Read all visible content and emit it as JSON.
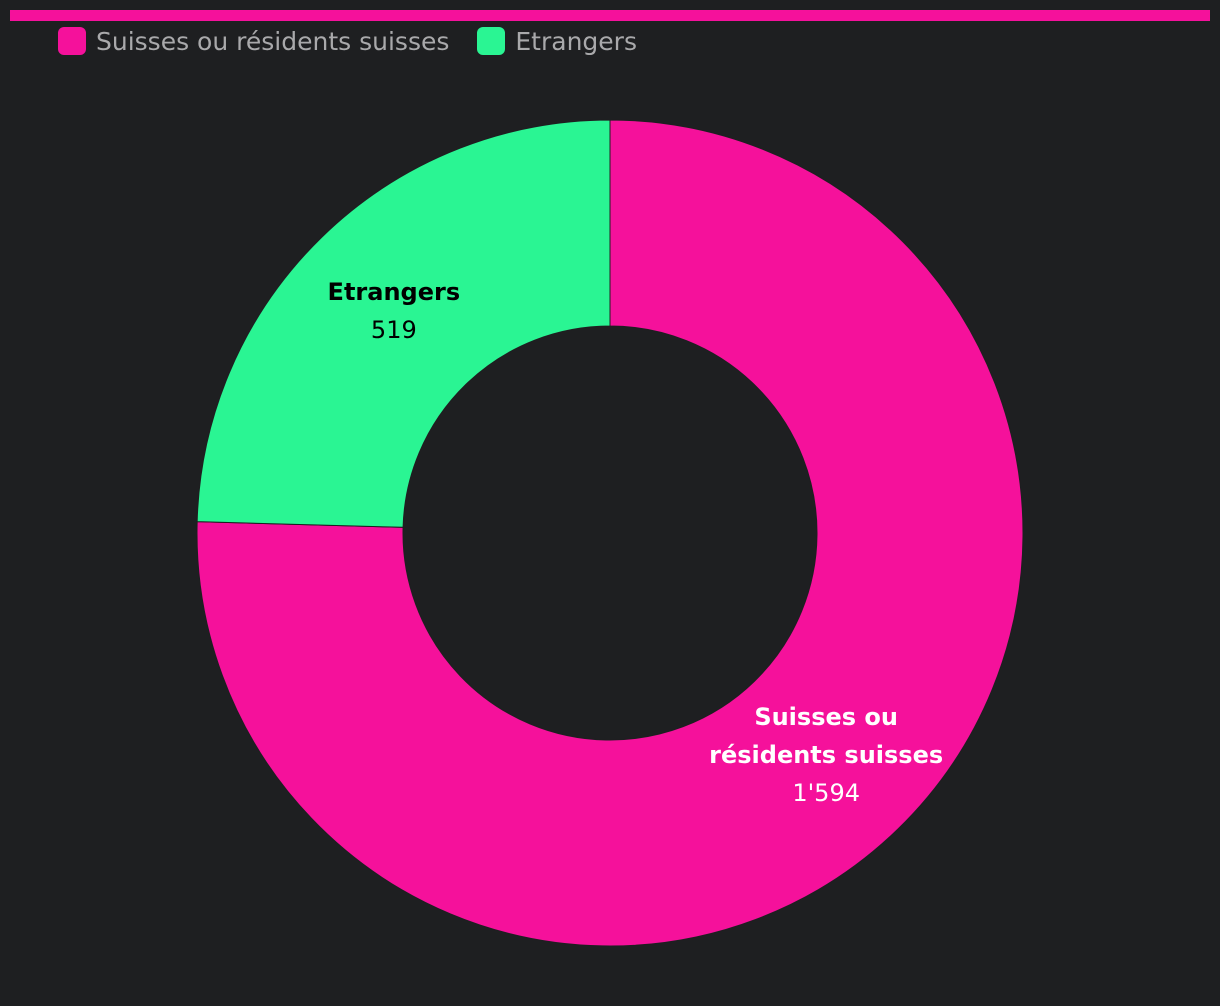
{
  "chart_data": {
    "type": "donut",
    "categories": [
      "Suisses ou résidents suisses",
      "Etrangers"
    ],
    "values": [
      1594,
      519
    ],
    "value_labels": [
      "1'594",
      "519"
    ],
    "colors": [
      "#f5119b",
      "#2af593"
    ]
  }
}
